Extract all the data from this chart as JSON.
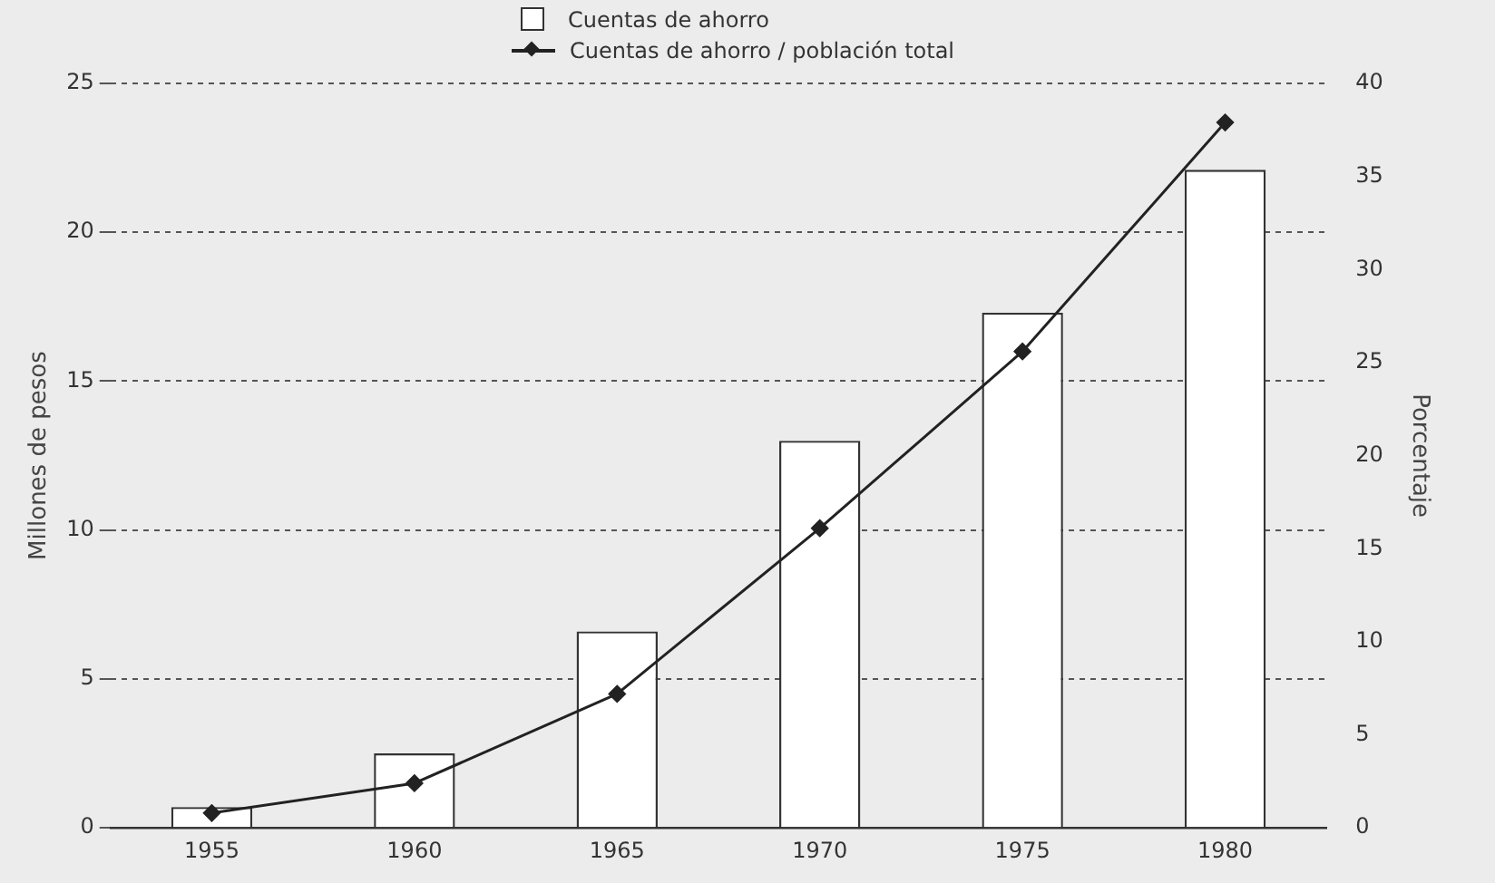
{
  "chart_data": {
    "type": "bar",
    "categories": [
      "1955",
      "1960",
      "1965",
      "1970",
      "1975",
      "1980"
    ],
    "series": [
      {
        "name": "Cuentas de ahorro",
        "color": "#ffffff",
        "values": [
          0.7,
          2.5,
          6.6,
          13.0,
          17.3,
          22.1
        ]
      },
      {
        "name": "Cuentas de ahorro / población total",
        "type": "line",
        "axis": "y2",
        "color": "#222222",
        "values": [
          0.8,
          2.4,
          7.2,
          16.1,
          25.6,
          37.9
        ]
      }
    ],
    "ylabel": "Millones de pesos",
    "y2label": "Porcentaje",
    "ylim": [
      0,
      25
    ],
    "yticks": [
      0,
      5,
      10,
      15,
      20,
      25
    ],
    "y2lim": [
      0,
      40
    ],
    "y2ticks": [
      0,
      5,
      10,
      15,
      20,
      25,
      30,
      35,
      40
    ],
    "grid": "y",
    "legend": "top",
    "marker": "diamond",
    "line_style": "solid"
  }
}
